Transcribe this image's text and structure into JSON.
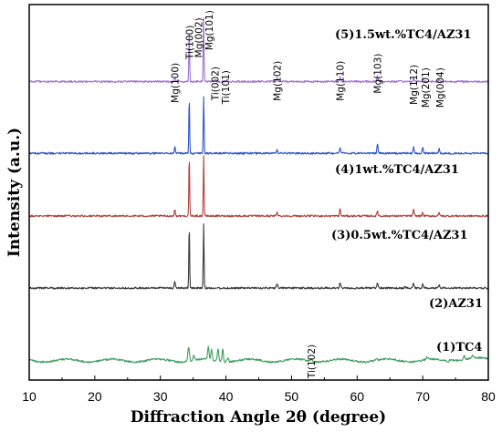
{
  "chart_data": {
    "type": "line",
    "title": "",
    "xlabel": "Diffraction Angle 2θ (degree)",
    "ylabel": "Intensity (a.u.)",
    "xlim": [
      10,
      80
    ],
    "x_ticks": [
      "10",
      "20",
      "30",
      "40",
      "50",
      "60",
      "70",
      "80"
    ],
    "y_ticks": [],
    "grid": false,
    "legend": "none",
    "series": [
      {
        "name": "(1)TC4",
        "color": "#3e9e5e",
        "baseline": 0.052,
        "peaks": [
          {
            "x": 34.3,
            "h": 0.038,
            "w": 0.12
          },
          {
            "x": 35.1,
            "h": 0.012,
            "w": 0.12
          },
          {
            "x": 37.3,
            "h": 0.036,
            "w": 0.1
          },
          {
            "x": 37.8,
            "h": 0.03,
            "w": 0.1
          },
          {
            "x": 38.8,
            "h": 0.034,
            "w": 0.1
          },
          {
            "x": 39.5,
            "h": 0.034,
            "w": 0.1
          },
          {
            "x": 40.3,
            "h": 0.01,
            "w": 0.12
          },
          {
            "x": 53.0,
            "h": 0.006,
            "w": 0.15
          },
          {
            "x": 63.0,
            "h": 0.004,
            "w": 0.15
          },
          {
            "x": 70.7,
            "h": 0.006,
            "w": 0.15
          },
          {
            "x": 76.3,
            "h": 0.01,
            "w": 0.15
          },
          {
            "x": 77.6,
            "h": 0.007,
            "w": 0.15
          }
        ]
      },
      {
        "name": "(2)AZ31",
        "color": "#3a3a3a",
        "baseline": 0.245,
        "peaks": [
          {
            "x": 32.2,
            "h": 0.018,
            "w": 0.08
          },
          {
            "x": 34.4,
            "h": 0.17,
            "w": 0.06
          },
          {
            "x": 36.6,
            "h": 0.17,
            "w": 0.06
          },
          {
            "x": 47.8,
            "h": 0.012,
            "w": 0.08
          },
          {
            "x": 57.4,
            "h": 0.016,
            "w": 0.08
          },
          {
            "x": 63.1,
            "h": 0.016,
            "w": 0.08
          },
          {
            "x": 67.3,
            "h": 0.006,
            "w": 0.08
          },
          {
            "x": 68.6,
            "h": 0.014,
            "w": 0.08
          },
          {
            "x": 70.0,
            "h": 0.01,
            "w": 0.08
          },
          {
            "x": 72.5,
            "h": 0.008,
            "w": 0.08
          }
        ]
      },
      {
        "name": "(3)0.5wt.%TC4/AZ31",
        "color": "#b0403a",
        "baseline": 0.437,
        "peaks": [
          {
            "x": 32.2,
            "h": 0.018,
            "w": 0.08
          },
          {
            "x": 34.4,
            "h": 0.16,
            "w": 0.06
          },
          {
            "x": 36.6,
            "h": 0.16,
            "w": 0.06
          },
          {
            "x": 47.8,
            "h": 0.012,
            "w": 0.08
          },
          {
            "x": 57.4,
            "h": 0.02,
            "w": 0.08
          },
          {
            "x": 63.1,
            "h": 0.014,
            "w": 0.08
          },
          {
            "x": 68.6,
            "h": 0.018,
            "w": 0.08
          },
          {
            "x": 70.0,
            "h": 0.01,
            "w": 0.08
          },
          {
            "x": 72.5,
            "h": 0.01,
            "w": 0.08
          }
        ]
      },
      {
        "name": "(4)1wt.%TC4/AZ31",
        "color": "#2f55c8",
        "baseline": 0.604,
        "peaks": [
          {
            "x": 32.2,
            "h": 0.018,
            "w": 0.08
          },
          {
            "x": 34.4,
            "h": 0.15,
            "w": 0.06
          },
          {
            "x": 36.6,
            "h": 0.15,
            "w": 0.06
          },
          {
            "x": 47.8,
            "h": 0.012,
            "w": 0.08
          },
          {
            "x": 57.4,
            "h": 0.016,
            "w": 0.08
          },
          {
            "x": 63.1,
            "h": 0.024,
            "w": 0.08
          },
          {
            "x": 68.6,
            "h": 0.016,
            "w": 0.08
          },
          {
            "x": 70.0,
            "h": 0.016,
            "w": 0.08
          },
          {
            "x": 72.5,
            "h": 0.012,
            "w": 0.08
          }
        ]
      },
      {
        "name": "(5)1.5wt.%TC4/AZ31",
        "color": "#a070d0",
        "baseline": 0.795,
        "peaks": [
          {
            "x": 32.2,
            "h": 0.012,
            "w": 0.08
          },
          {
            "x": 34.4,
            "h": 0.14,
            "w": 0.06
          },
          {
            "x": 36.6,
            "h": 0.17,
            "w": 0.06
          },
          {
            "x": 38.4,
            "h": 0.006,
            "w": 0.1
          },
          {
            "x": 40.2,
            "h": 0.008,
            "w": 0.1
          },
          {
            "x": 47.8,
            "h": 0.01,
            "w": 0.08
          },
          {
            "x": 57.4,
            "h": 0.012,
            "w": 0.08
          },
          {
            "x": 63.1,
            "h": 0.016,
            "w": 0.08
          },
          {
            "x": 68.6,
            "h": 0.01,
            "w": 0.08
          },
          {
            "x": 70.0,
            "h": 0.008,
            "w": 0.08
          },
          {
            "x": 72.5,
            "h": 0.006,
            "w": 0.08
          }
        ]
      }
    ],
    "annotations": [
      {
        "text": "Mg(100)",
        "x": 32.2,
        "y": 0.845
      },
      {
        "text": "Ti(100)",
        "x": 34.4,
        "y": 0.945
      },
      {
        "text": "Mg(002)",
        "x": 35.8,
        "y": 0.965
      },
      {
        "text": "Mg(101)",
        "x": 37.4,
        "y": 0.985
      },
      {
        "text": "Ti(002)",
        "x": 38.3,
        "y": 0.835
      },
      {
        "text": "Ti(101)",
        "x": 39.9,
        "y": 0.825
      },
      {
        "text": "Mg(102)",
        "x": 47.8,
        "y": 0.85
      },
      {
        "text": "Mg(110)",
        "x": 57.4,
        "y": 0.85
      },
      {
        "text": "Mg(103)",
        "x": 63.1,
        "y": 0.87
      },
      {
        "text": "Mg(112)",
        "x": 68.6,
        "y": 0.84
      },
      {
        "text": "Mg(201)",
        "x": 70.4,
        "y": 0.832
      },
      {
        "text": "Mg(004)",
        "x": 72.6,
        "y": 0.832
      },
      {
        "text": "Ti(102)",
        "x": 53.0,
        "y": 0.095
      }
    ]
  }
}
